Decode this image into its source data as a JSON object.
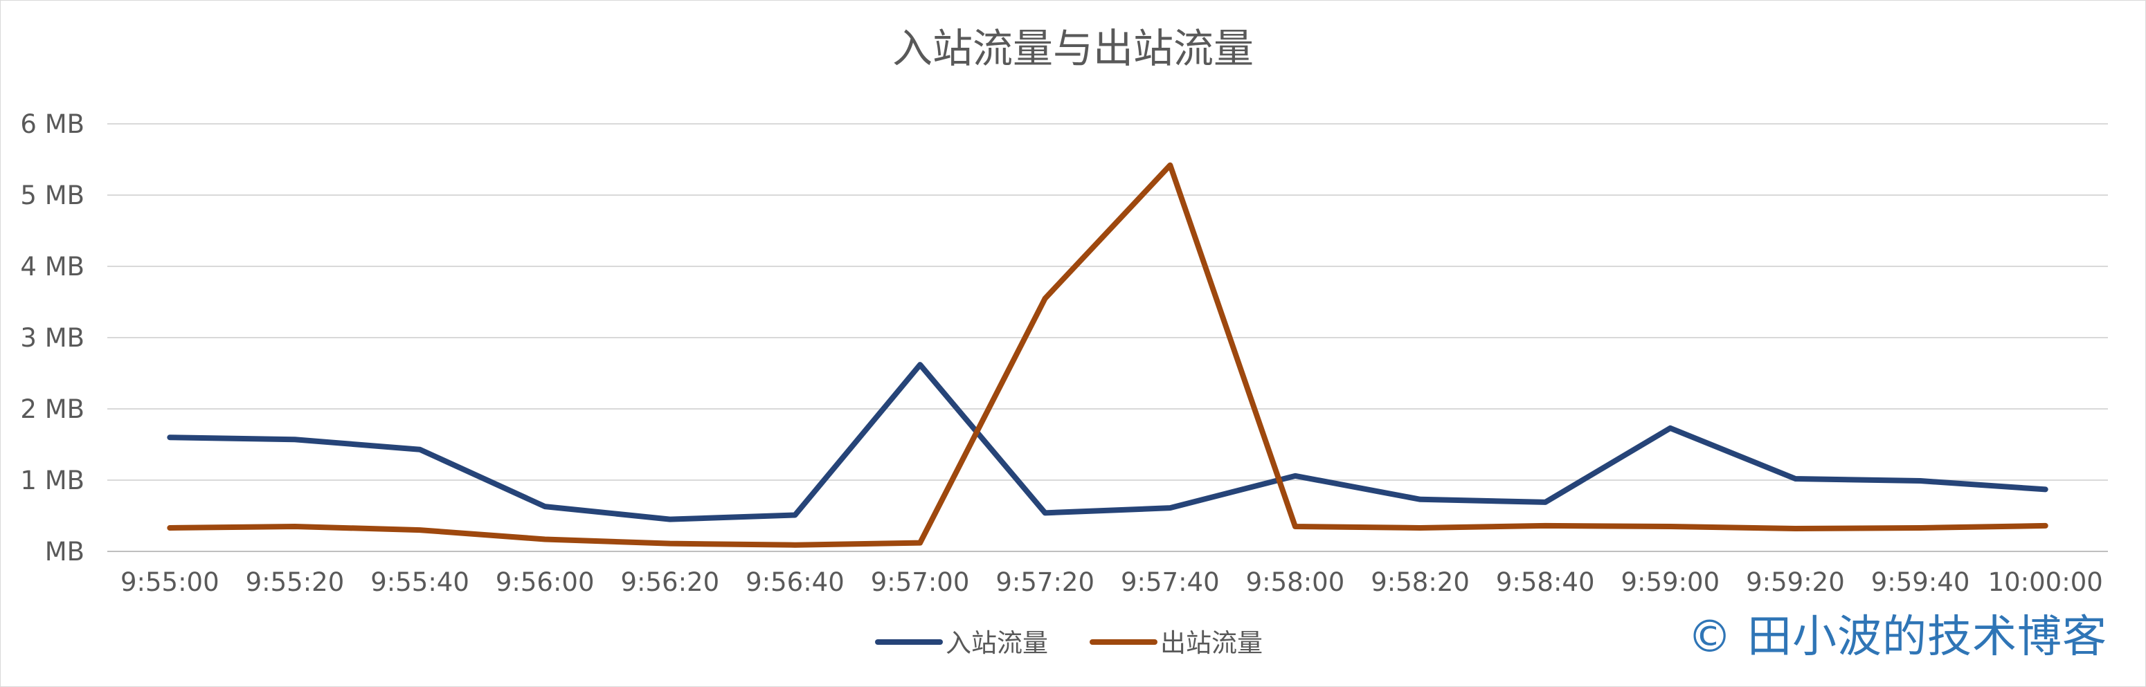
{
  "chart_data": {
    "type": "line",
    "title": "入站流量与出站流量",
    "xlabel": "",
    "ylabel": "",
    "categories": [
      "9:55:00",
      "9:55:20",
      "9:55:40",
      "9:56:00",
      "9:56:20",
      "9:56:40",
      "9:57:00",
      "9:57:20",
      "9:57:40",
      "9:58:00",
      "9:58:20",
      "9:58:40",
      "9:59:00",
      "9:59:20",
      "9:59:40",
      "10:00:00"
    ],
    "ylim": [
      0,
      6
    ],
    "yticks": [
      {
        "value": 0,
        "label": "MB"
      },
      {
        "value": 1,
        "label": "1 MB"
      },
      {
        "value": 2,
        "label": "2 MB"
      },
      {
        "value": 3,
        "label": "3 MB"
      },
      {
        "value": 4,
        "label": "4 MB"
      },
      {
        "value": 5,
        "label": "5 MB"
      },
      {
        "value": 6,
        "label": "6 MB"
      }
    ],
    "series": [
      {
        "name": "入站流量",
        "color": "#264478",
        "values": [
          1.6,
          1.57,
          1.43,
          0.63,
          0.45,
          0.51,
          2.62,
          0.54,
          0.61,
          1.06,
          0.73,
          0.69,
          1.73,
          1.02,
          0.99,
          0.87
        ]
      },
      {
        "name": "出站流量",
        "color": "#9e480e",
        "values": [
          0.33,
          0.35,
          0.3,
          0.17,
          0.11,
          0.09,
          0.12,
          3.55,
          5.42,
          0.35,
          0.33,
          0.36,
          0.35,
          0.32,
          0.33,
          0.36
        ]
      }
    ],
    "grid": true,
    "legend_position": "bottom"
  },
  "watermark": "© 田小波的技术博客"
}
